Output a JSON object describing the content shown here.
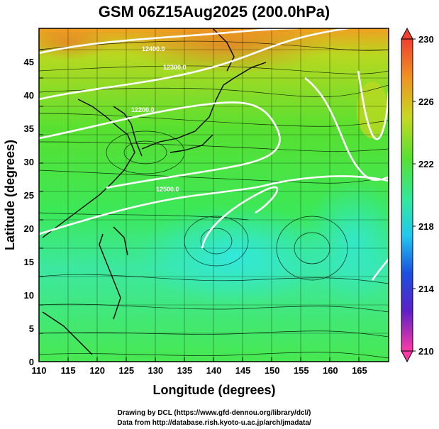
{
  "title": "GSM 06Z15Aug2025 (200.0hPa)",
  "x_axis": {
    "label": "Longitude (degrees)",
    "ticks": [
      "110",
      "115",
      "120",
      "125",
      "130",
      "135",
      "140",
      "145",
      "150",
      "155",
      "160",
      "165"
    ],
    "range": [
      110,
      170
    ]
  },
  "y_axis": {
    "label": "Latitude  (degrees)",
    "ticks": [
      "0",
      "5",
      "10",
      "15",
      "20",
      "25",
      "30",
      "35",
      "40",
      "45"
    ],
    "range": [
      0,
      50
    ]
  },
  "colorbar": {
    "labels": [
      "230",
      "226",
      "222",
      "218",
      "214",
      "210"
    ],
    "min": 210,
    "max": 230,
    "colors": [
      "#ff2a9a",
      "#c20bd6",
      "#4b2bd0",
      "#1a40e0",
      "#18b8f0",
      "#20e8c8",
      "#30e890",
      "#4ce830",
      "#88e020",
      "#d8d020",
      "#f0a020",
      "#f06028"
    ]
  },
  "contours": {
    "line_color": "#ffffff",
    "labels": [
      "12400.0",
      "12500.0",
      "12300.0",
      "12200.0"
    ]
  },
  "credits": {
    "line1": "Drawing by DCL (https://www.gfd-dennou.org/library/dcl/)",
    "line2": "Data from http://database.rish.kyoto-u.ac.jp/arch/jmadata/"
  }
}
